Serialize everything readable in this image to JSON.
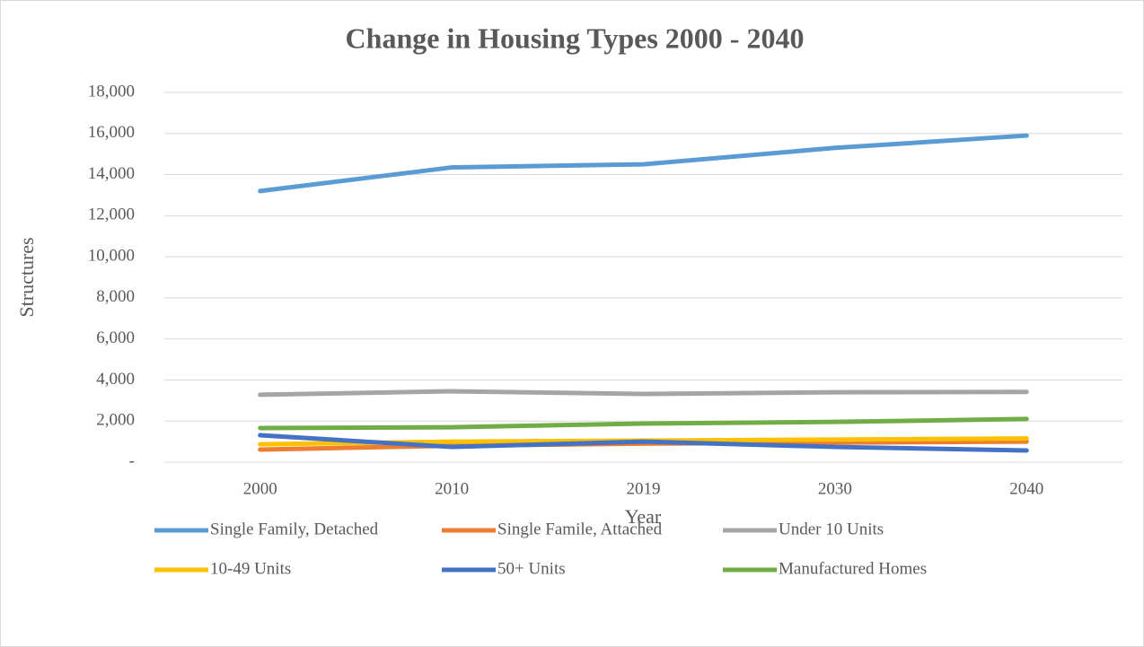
{
  "chart_data": {
    "type": "line",
    "title": "Change in Housing Types 2000 - 2040",
    "x_label": "Year",
    "y_label": "Structures",
    "categories": [
      "2000",
      "2010",
      "2019",
      "2030",
      "2040"
    ],
    "series": [
      {
        "name": "Single Family, Detached",
        "color": "#5b9bd5",
        "values": [
          13200,
          14350,
          14500,
          15300,
          15900
        ]
      },
      {
        "name": "Single Famile, Attached",
        "color": "#ed7d31",
        "values": [
          610,
          800,
          900,
          950,
          1000
        ]
      },
      {
        "name": "Under 10 Units",
        "color": "#a5a5a5",
        "values": [
          3280,
          3450,
          3320,
          3400,
          3420
        ]
      },
      {
        "name": "10-49 Units",
        "color": "#ffc000",
        "values": [
          870,
          1000,
          1050,
          1100,
          1150
        ]
      },
      {
        "name": "50+ Units",
        "color": "#4472c4",
        "values": [
          1310,
          740,
          1000,
          740,
          570
        ]
      },
      {
        "name": "Manufactured Homes",
        "color": "#70ad47",
        "values": [
          1660,
          1700,
          1880,
          1960,
          2100
        ]
      }
    ],
    "ylim": [
      0,
      18000
    ],
    "yticks": [
      {
        "value": 0,
        "label": "-"
      },
      {
        "value": 2000,
        "label": "2,000"
      },
      {
        "value": 4000,
        "label": "4,000"
      },
      {
        "value": 6000,
        "label": "6,000"
      },
      {
        "value": 8000,
        "label": "8,000"
      },
      {
        "value": 10000,
        "label": "10,000"
      },
      {
        "value": 12000,
        "label": "12,000"
      },
      {
        "value": 14000,
        "label": "14,000"
      },
      {
        "value": 16000,
        "label": "16,000"
      },
      {
        "value": 18000,
        "label": "18,000"
      }
    ],
    "grid": true,
    "legend": "bottom"
  }
}
